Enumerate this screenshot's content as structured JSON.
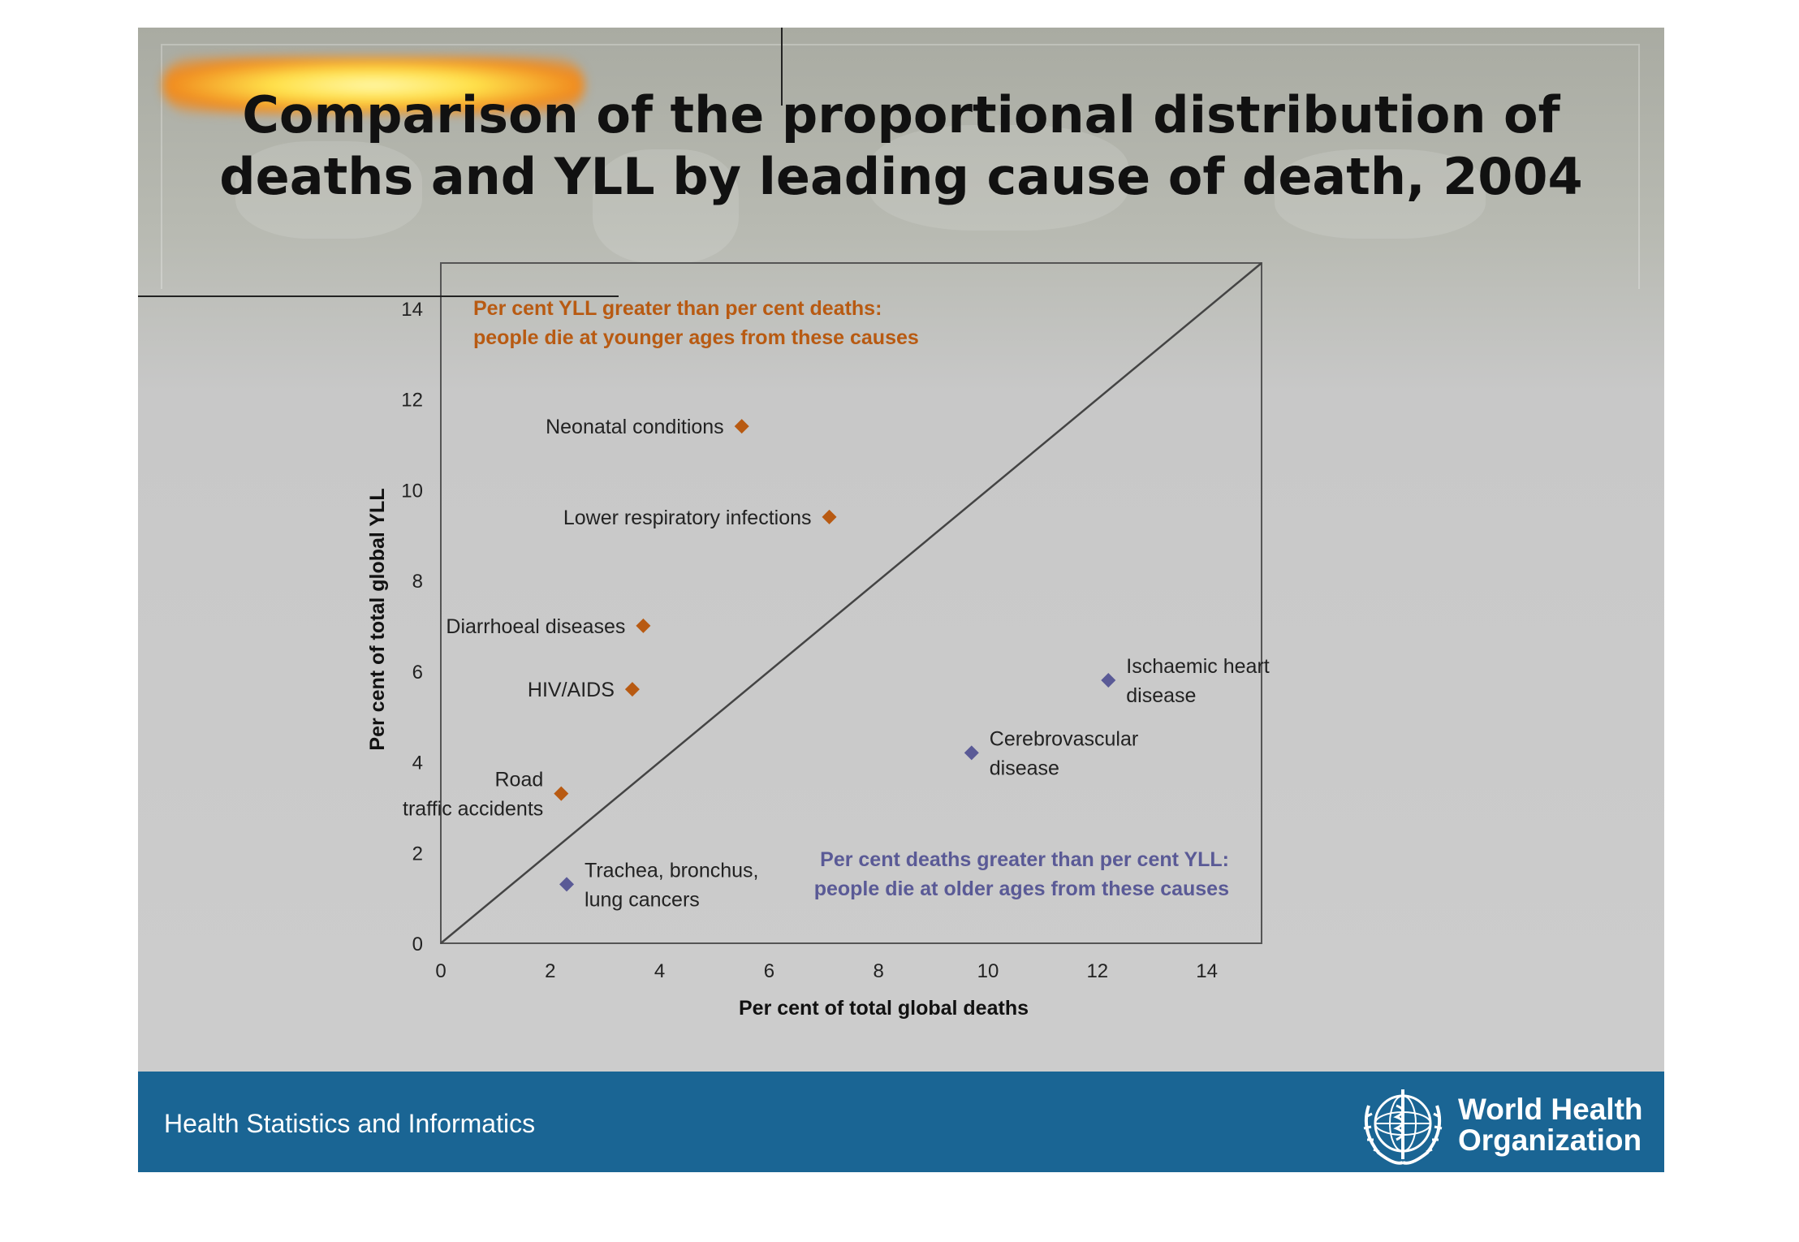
{
  "slide": {
    "title_line1": "Comparison of the proportional distribution of",
    "title_line2": "deaths and YLL by leading cause of death, 2004"
  },
  "footer": {
    "left_text": "Health Statistics and Informatics",
    "org_line1": "World Health",
    "org_line2": "Organization",
    "logo_icon": "who-emblem-icon"
  },
  "colors": {
    "footer_bg": "#1a6594",
    "younger_marker": "#b85a12",
    "older_marker": "#5a5a96",
    "axis": "#555555"
  },
  "chart_data": {
    "type": "scatter",
    "xlabel": "Per cent of total global deaths",
    "ylabel": "Per cent of total global YLL",
    "xlim": [
      0,
      15
    ],
    "ylim": [
      0,
      15
    ],
    "x_ticks": [
      0,
      2,
      4,
      6,
      8,
      10,
      12,
      14
    ],
    "y_ticks": [
      0,
      2,
      4,
      6,
      8,
      10,
      12,
      14
    ],
    "reference_line": "y = x",
    "annotations": [
      {
        "lines": [
          "Per cent YLL greater than per cent deaths:",
          "people die at younger ages from these causes"
        ],
        "color": "#b85a12",
        "position": "top-left"
      },
      {
        "lines": [
          "Per cent deaths greater than per cent YLL:",
          "people die at older ages from these causes"
        ],
        "color": "#5a5a96",
        "position": "bottom-right"
      }
    ],
    "series": [
      {
        "group": "younger",
        "color": "#b85a12",
        "points": [
          {
            "label": [
              "Neonatal conditions"
            ],
            "x": 5.5,
            "y": 11.4,
            "label_side": "left"
          },
          {
            "label": [
              "Lower respiratory infections"
            ],
            "x": 7.1,
            "y": 9.4,
            "label_side": "left"
          },
          {
            "label": [
              "Diarrhoeal diseases"
            ],
            "x": 3.7,
            "y": 7.0,
            "label_side": "left"
          },
          {
            "label": [
              "HIV/AIDS"
            ],
            "x": 3.5,
            "y": 5.6,
            "label_side": "left"
          },
          {
            "label": [
              "Road",
              "traffic accidents"
            ],
            "x": 2.2,
            "y": 3.3,
            "label_side": "left"
          }
        ]
      },
      {
        "group": "older",
        "color": "#5a5a96",
        "points": [
          {
            "label": [
              "Ischaemic heart",
              "disease"
            ],
            "x": 12.2,
            "y": 5.8,
            "label_side": "right"
          },
          {
            "label": [
              "Cerebrovascular",
              "disease"
            ],
            "x": 9.7,
            "y": 4.2,
            "label_side": "right"
          },
          {
            "label": [
              "Trachea, bronchus,",
              "lung cancers"
            ],
            "x": 2.3,
            "y": 1.3,
            "label_side": "right"
          }
        ]
      }
    ]
  }
}
